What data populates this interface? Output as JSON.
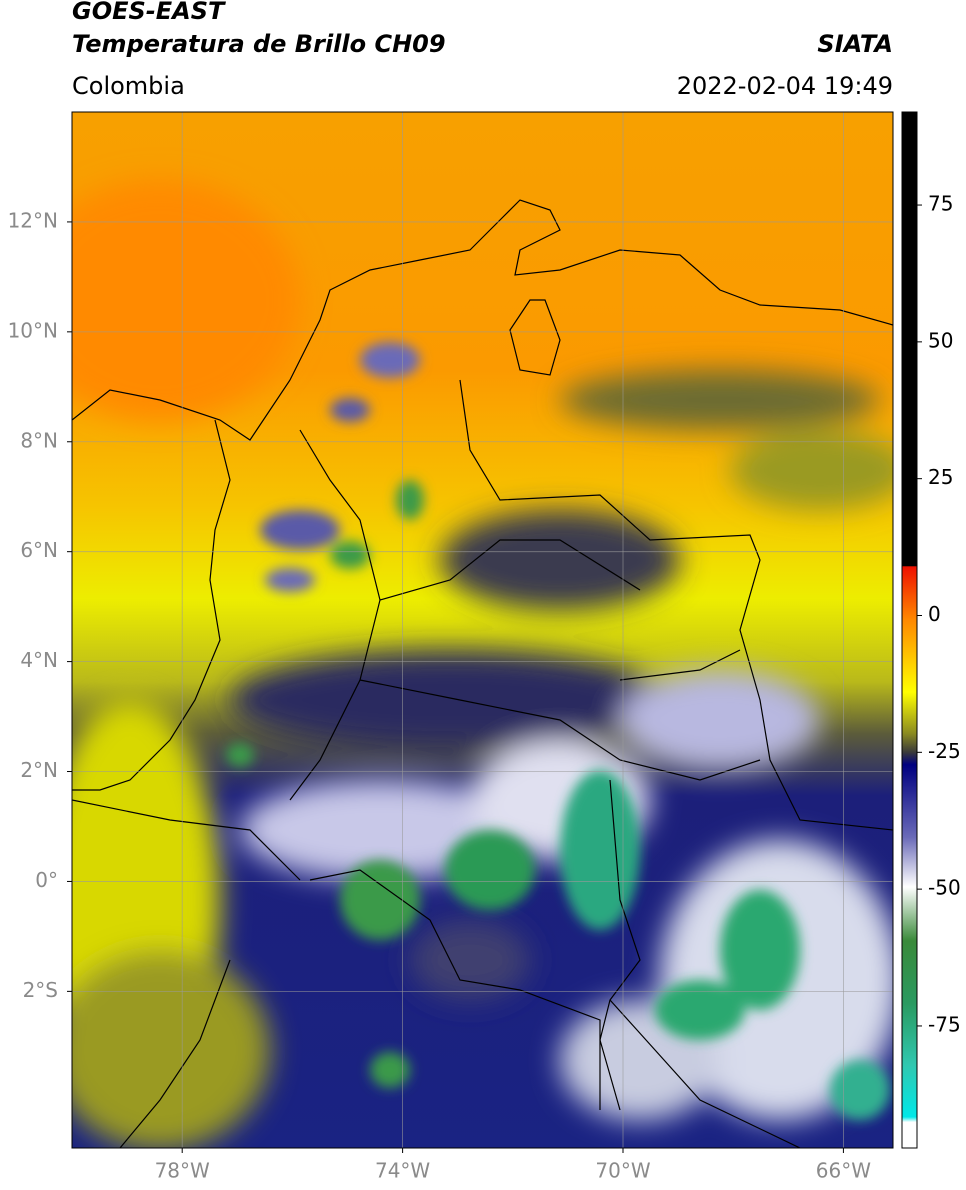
{
  "header": {
    "title": "GOES-EAST",
    "subtitle": "Temperatura de Brillo CH09",
    "region": "Colombia",
    "source": "SIATA",
    "timestamp": "2022-02-04 19:49"
  },
  "map": {
    "xlim": [
      -80,
      -65.1
    ],
    "ylim": [
      -4.85,
      14
    ],
    "xticks": [
      {
        "value": -78,
        "label": "78°W"
      },
      {
        "value": -74,
        "label": "74°W"
      },
      {
        "value": -70,
        "label": "70°W"
      },
      {
        "value": -66,
        "label": "66°W"
      }
    ],
    "yticks": [
      {
        "value": 12,
        "label": "12°N"
      },
      {
        "value": 10,
        "label": "10°N"
      },
      {
        "value": 8,
        "label": "8°N"
      },
      {
        "value": 6,
        "label": "6°N"
      },
      {
        "value": 4,
        "label": "4°N"
      },
      {
        "value": 2,
        "label": "2°N"
      },
      {
        "value": 0,
        "label": "0°"
      },
      {
        "value": -2,
        "label": "2°S"
      }
    ],
    "grid": true
  },
  "colorbar": {
    "lim": [
      -97.3,
      92
    ],
    "ticks": [
      75,
      50,
      25,
      0,
      -25,
      -50,
      -75
    ]
  }
}
